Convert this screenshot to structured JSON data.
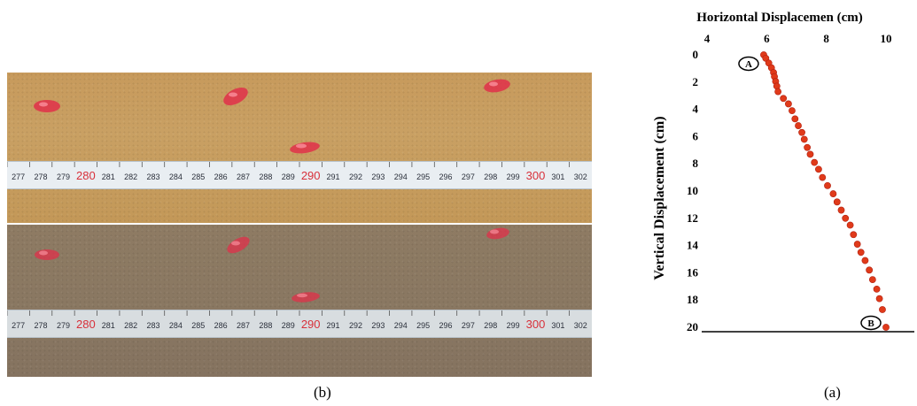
{
  "figure": {
    "left_panel_caption": "(b)",
    "right_panel_caption": "(a)",
    "photo_panels": [
      {
        "panel": "top",
        "tape_numbers": [
          "277",
          "278",
          "279",
          "280",
          "281",
          "282",
          "283",
          "284",
          "285",
          "286",
          "287",
          "288",
          "289",
          "290",
          "291",
          "292",
          "293",
          "294",
          "295",
          "296",
          "297",
          "298",
          "299",
          "300",
          "301",
          "302"
        ]
      },
      {
        "panel": "bottom",
        "tape_numbers": [
          "277",
          "278",
          "279",
          "280",
          "281",
          "282",
          "283",
          "284",
          "285",
          "286",
          "287",
          "288",
          "289",
          "290",
          "291",
          "292",
          "293",
          "294",
          "295",
          "296",
          "297",
          "298",
          "299",
          "300",
          "301",
          "302"
        ]
      }
    ],
    "tape_highlight_numbers": [
      "280",
      "290",
      "300"
    ],
    "colors": {
      "bead": "#e0304a",
      "marker": "#e03a1a",
      "tape_highlight": "#d8303a"
    }
  },
  "chart_data": {
    "type": "scatter",
    "title": "Horizontal  Displacemen (cm)",
    "ylabel": "Vertical Displacement (cm)",
    "xlim": [
      4,
      10
    ],
    "ylim": [
      0,
      20
    ],
    "x_ticks": [
      "4",
      "6",
      "8",
      "10"
    ],
    "y_ticks": [
      "0",
      "2",
      "4",
      "6",
      "8",
      "10",
      "12",
      "14",
      "16",
      "18",
      "20"
    ],
    "x_axis_position": "top",
    "y_axis_inverted": true,
    "annotations": [
      {
        "label": "A",
        "x": 5.9,
        "y": 0.0
      },
      {
        "label": "B",
        "x": 10.0,
        "y": 20.0
      }
    ],
    "series": [
      {
        "x": [
          5.9,
          5.97,
          6.07,
          6.16,
          6.23,
          6.26,
          6.3,
          6.34,
          6.38,
          6.56,
          6.73,
          6.85,
          6.95,
          7.06,
          7.18,
          7.26,
          7.36,
          7.46,
          7.6,
          7.74,
          7.87,
          8.04,
          8.23,
          8.36,
          8.5,
          8.64,
          8.8,
          8.91,
          9.04,
          9.16,
          9.3,
          9.44,
          9.55,
          9.69,
          9.78,
          9.88,
          10.0
        ],
        "y": [
          0.0,
          0.25,
          0.6,
          0.95,
          1.3,
          1.6,
          1.95,
          2.3,
          2.7,
          3.2,
          3.6,
          4.1,
          4.7,
          5.2,
          5.7,
          6.2,
          6.8,
          7.3,
          7.9,
          8.4,
          9.0,
          9.6,
          10.2,
          10.8,
          11.4,
          12.0,
          12.5,
          13.2,
          13.9,
          14.5,
          15.1,
          15.8,
          16.5,
          17.2,
          17.9,
          18.7,
          20.0
        ]
      }
    ]
  }
}
